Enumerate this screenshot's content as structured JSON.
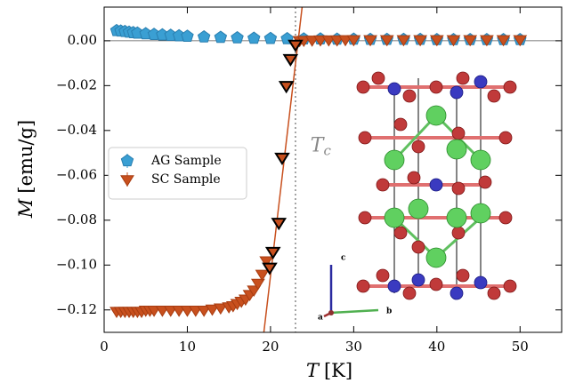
{
  "chart_data": {
    "type": "scatter",
    "xlabel": {
      "symbol": "T",
      "unit": "[K]"
    },
    "ylabel": {
      "symbol": "M",
      "unit": "[emu/g]"
    },
    "xlim": [
      0,
      55
    ],
    "ylim": [
      -0.13,
      0.015
    ],
    "xticks": [
      0,
      10,
      20,
      30,
      40,
      50
    ],
    "yticks": [
      {
        "value": 0,
        "label": "0.00"
      },
      {
        "value": -0.02,
        "label": "−0.02"
      },
      {
        "value": -0.04,
        "label": "−0.04"
      },
      {
        "value": -0.06,
        "label": "−0.06"
      },
      {
        "value": -0.08,
        "label": "−0.08"
      },
      {
        "value": -0.1,
        "label": "−0.10"
      },
      {
        "value": -0.12,
        "label": "−0.12"
      }
    ],
    "legend": "center left",
    "series": [
      {
        "name": "AG Sample",
        "color": "#3a9fd3",
        "edgecolor": "#2a7fb0",
        "marker": "pentagon",
        "x": [
          1.5,
          2,
          2.5,
          3,
          3.5,
          4,
          5,
          6,
          7,
          8,
          9,
          10,
          12,
          14,
          16,
          18,
          20,
          22,
          24,
          26,
          28,
          30,
          32,
          34,
          36,
          38,
          40,
          42,
          44,
          46,
          48,
          50
        ],
        "values": [
          0.0045,
          0.0043,
          0.0041,
          0.0038,
          0.0036,
          0.0034,
          0.0031,
          0.0028,
          0.0026,
          0.0024,
          0.0022,
          0.002,
          0.0017,
          0.0015,
          0.0013,
          0.0011,
          0.001,
          0.0009,
          0.0008,
          0.0008,
          0.0007,
          0.0007,
          0.0006,
          0.0006,
          0.0006,
          0.0006,
          0.0005,
          0.0005,
          0.0005,
          0.0005,
          0.0005,
          0.0005
        ]
      },
      {
        "name": "SC Sample",
        "color": "#c8501e",
        "edgecolor": "#a83c10",
        "marker": "triangle-down",
        "x": [
          1.5,
          2,
          2.5,
          3,
          3.5,
          4,
          4.5,
          5,
          5.5,
          6,
          7,
          8,
          9,
          10,
          11,
          12,
          13,
          14,
          15,
          15.5,
          16,
          16.5,
          17,
          17.5,
          18,
          18.5,
          19,
          19.5,
          23.5,
          24,
          25,
          26,
          27,
          28,
          29,
          30,
          32,
          34,
          36,
          38,
          40,
          42,
          44,
          46,
          48,
          50
        ],
        "values": [
          -0.1205,
          -0.1205,
          -0.1205,
          -0.1205,
          -0.1205,
          -0.1205,
          -0.1205,
          -0.12,
          -0.12,
          -0.12,
          -0.12,
          -0.12,
          -0.12,
          -0.12,
          -0.12,
          -0.12,
          -0.1195,
          -0.119,
          -0.1185,
          -0.118,
          -0.117,
          -0.116,
          -0.115,
          -0.113,
          -0.111,
          -0.108,
          -0.104,
          -0.098,
          0.0002,
          0.0003,
          0.0004,
          0.0005,
          0.0005,
          0.0005,
          0.0006,
          0.0006,
          0.0006,
          0.0006,
          0.0006,
          0.0006,
          0.0006,
          0.0006,
          0.0006,
          0.0006,
          0.0006,
          0.0006
        ]
      },
      {
        "color": "#c8501e",
        "edgecolor": "#000000",
        "marker": "triangle-down",
        "x": [
          19.9,
          20.3,
          21,
          21.4,
          21.9,
          22.4,
          23
        ],
        "values": [
          -0.101,
          -0.094,
          -0.081,
          -0.052,
          -0.02,
          -0.008,
          -0.0016
        ]
      }
    ],
    "fit_line": {
      "color": "#c8501e",
      "x": [
        19.2,
        23.8
      ],
      "values": [
        -0.13,
        0.015
      ]
    },
    "vline": {
      "x": 23,
      "color": "#888888",
      "symbol": "T",
      "sub": "c",
      "label_x": 24.8,
      "label_y": -0.047
    },
    "inset": {
      "axis_labels": [
        "a",
        "b",
        "c"
      ]
    }
  }
}
